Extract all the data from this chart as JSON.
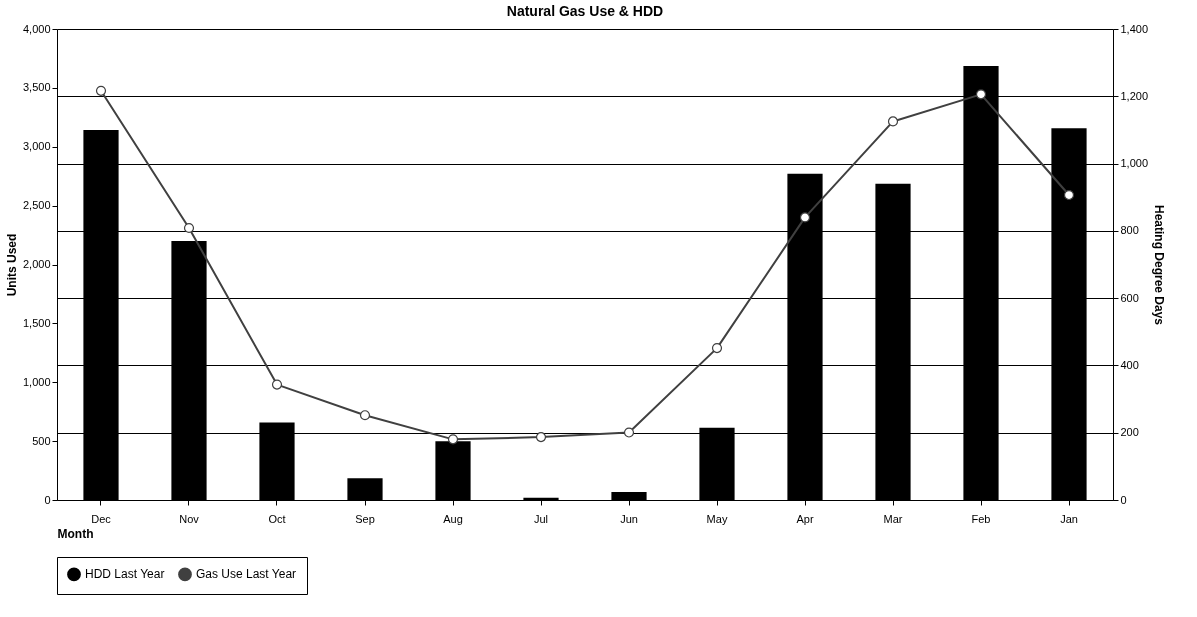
{
  "chart_data": {
    "type": "bar",
    "title": "Natural Gas Use & HDD",
    "xlabel": "Month",
    "ylabel": "Units Used",
    "y2label": "Heating Degree Days",
    "categories": [
      "Dec",
      "Nov",
      "Oct",
      "Sep",
      "Aug",
      "Jul",
      "Jun",
      "May",
      "Apr",
      "Mar",
      "Feb",
      "Jan"
    ],
    "series": [
      {
        "name": "HDD Last Year",
        "axis": "y2",
        "color": "#000000",
        "values": [
          1100,
          770,
          230,
          65,
          175,
          7,
          24,
          215,
          970,
          940,
          1290,
          1105
        ]
      },
      {
        "name": "Gas Use Last Year",
        "type": "line",
        "axis": "y",
        "color": "#404040",
        "marker": "circle",
        "line_style": "solid",
        "values": [
          3475,
          2310,
          980,
          720,
          515,
          534,
          573,
          1290,
          2400,
          3215,
          3445,
          2590
        ]
      }
    ],
    "ylim": [
      0,
      4000
    ],
    "yticks": [
      0,
      500,
      {
        "value": 1000,
        "label": "1,000"
      },
      {
        "value": 1500,
        "label": "1,500"
      },
      {
        "value": 2000,
        "label": "2,000"
      },
      {
        "value": 2500,
        "label": "2,500"
      },
      {
        "value": 3000,
        "label": "3,000"
      },
      {
        "value": 3500,
        "label": "3,500"
      },
      {
        "value": 4000,
        "label": "4,000"
      }
    ],
    "y2lim": [
      0,
      1400
    ],
    "y2ticks": [
      0,
      200,
      400,
      600,
      800,
      {
        "value": 1000,
        "label": "1,000"
      },
      {
        "value": 1200,
        "label": "1,200"
      },
      {
        "value": 1400,
        "label": "1,400"
      }
    ],
    "grid": true,
    "legend": "bottom"
  }
}
